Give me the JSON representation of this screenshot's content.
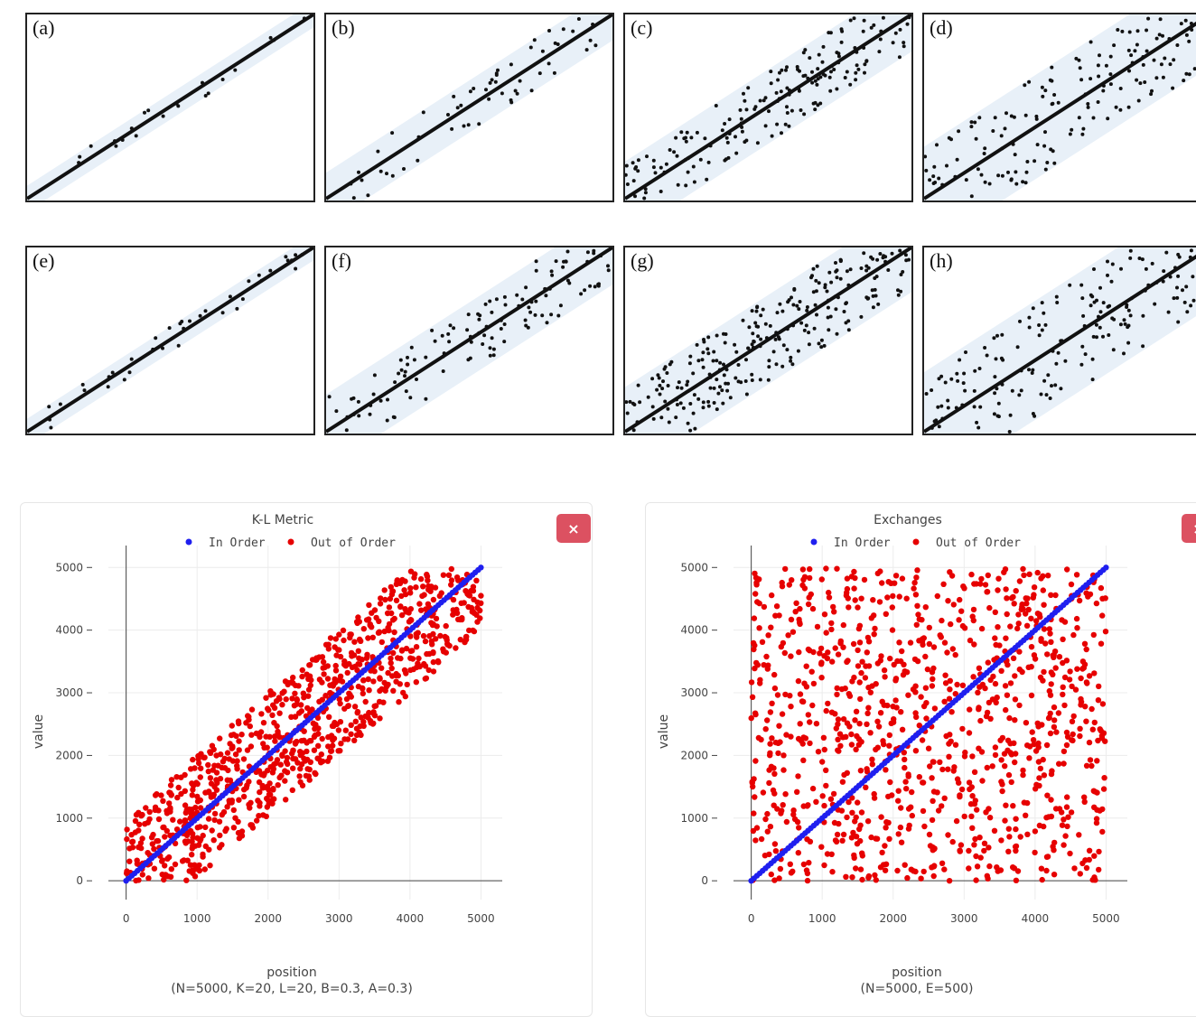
{
  "panels": [
    {
      "label": "(a)",
      "spread": 0.07,
      "count": 22
    },
    {
      "label": "(b)",
      "spread": 0.14,
      "count": 60
    },
    {
      "label": "(c)",
      "spread": 0.2,
      "count": 200
    },
    {
      "label": "(d)",
      "spread": 0.28,
      "count": 170
    },
    {
      "label": "(e)",
      "spread": 0.07,
      "count": 40
    },
    {
      "label": "(f)",
      "spread": 0.2,
      "count": 130
    },
    {
      "label": "(g)",
      "spread": 0.24,
      "count": 280
    },
    {
      "label": "(h)",
      "spread": 0.32,
      "count": 220
    }
  ],
  "colors": {
    "in_order": "#1f1fef",
    "out_of_order": "#e60000",
    "close_button": "#dc5161",
    "band": "#e8f0f8"
  },
  "close_label": "×",
  "chart_data": [
    {
      "type": "scatter",
      "title": "K-L Metric",
      "xlabel": "position",
      "xlabel_sub": "(N=5000, K=20, L=20, B=0.3, A=0.3)",
      "ylabel": "value",
      "xlim": [
        0,
        5200
      ],
      "ylim": [
        0,
        5000
      ],
      "xticks": [
        0,
        1000,
        2000,
        3000,
        4000,
        5000
      ],
      "yticks": [
        0,
        1000,
        2000,
        3000,
        4000,
        5000
      ],
      "grid": true,
      "legend_position": "top",
      "series": [
        {
          "name": "In Order",
          "color": "#1f1fef",
          "pattern": "diagonal",
          "x_range": [
            0,
            5000
          ]
        },
        {
          "name": "Out of Order",
          "color": "#e60000",
          "pattern": "band",
          "band_halfwidth": 1000,
          "approx_count": 900
        }
      ]
    },
    {
      "type": "scatter",
      "title": "Exchanges",
      "xlabel": "position",
      "xlabel_sub": "(N=5000, E=500)",
      "ylabel": "value",
      "xlim": [
        0,
        5200
      ],
      "ylim": [
        0,
        5000
      ],
      "xticks": [
        0,
        1000,
        2000,
        3000,
        4000,
        5000
      ],
      "yticks": [
        0,
        1000,
        2000,
        3000,
        4000,
        5000
      ],
      "grid": true,
      "legend_position": "top",
      "series": [
        {
          "name": "In Order",
          "color": "#1f1fef",
          "pattern": "diagonal",
          "x_range": [
            0,
            5000
          ]
        },
        {
          "name": "Out of Order",
          "color": "#e60000",
          "pattern": "uniform",
          "approx_count": 1000
        }
      ]
    }
  ]
}
